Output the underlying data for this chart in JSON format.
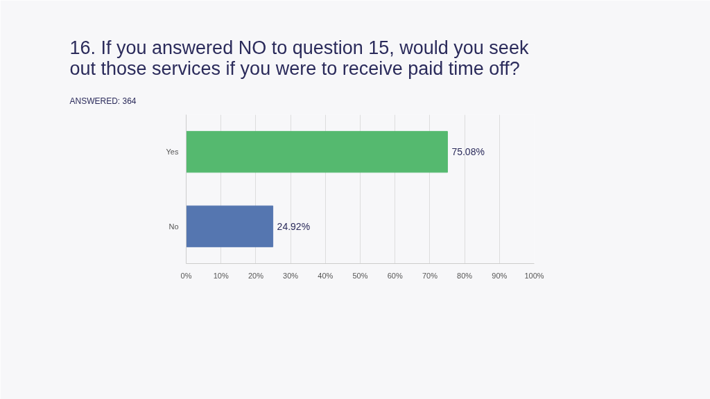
{
  "chart_data": {
    "type": "bar",
    "orientation": "horizontal",
    "title": "16. If you answered NO to question 15, would you seek out those services if you were to receive paid time off?",
    "subtitle": "ANSWERED: 364",
    "categories": [
      "Yes",
      "No"
    ],
    "values": [
      75.08,
      24.92
    ],
    "colors": [
      "#55b96f",
      "#5576b0"
    ],
    "value_labels": [
      "75.08%",
      "24.92%"
    ],
    "xlim": [
      0,
      100
    ],
    "xticks": [
      {
        "value": 0,
        "label": "0%"
      },
      {
        "value": 10,
        "label": "10%"
      },
      {
        "value": 20,
        "label": "20%"
      },
      {
        "value": 30,
        "label": "30%"
      },
      {
        "value": 40,
        "label": "40%"
      },
      {
        "value": 50,
        "label": "50%"
      },
      {
        "value": 60,
        "label": "60%"
      },
      {
        "value": 70,
        "label": "70%"
      },
      {
        "value": 80,
        "label": "80%"
      },
      {
        "value": 90,
        "label": "90%"
      },
      {
        "value": 100,
        "label": "100%"
      }
    ],
    "grid": "x",
    "legend": false
  }
}
